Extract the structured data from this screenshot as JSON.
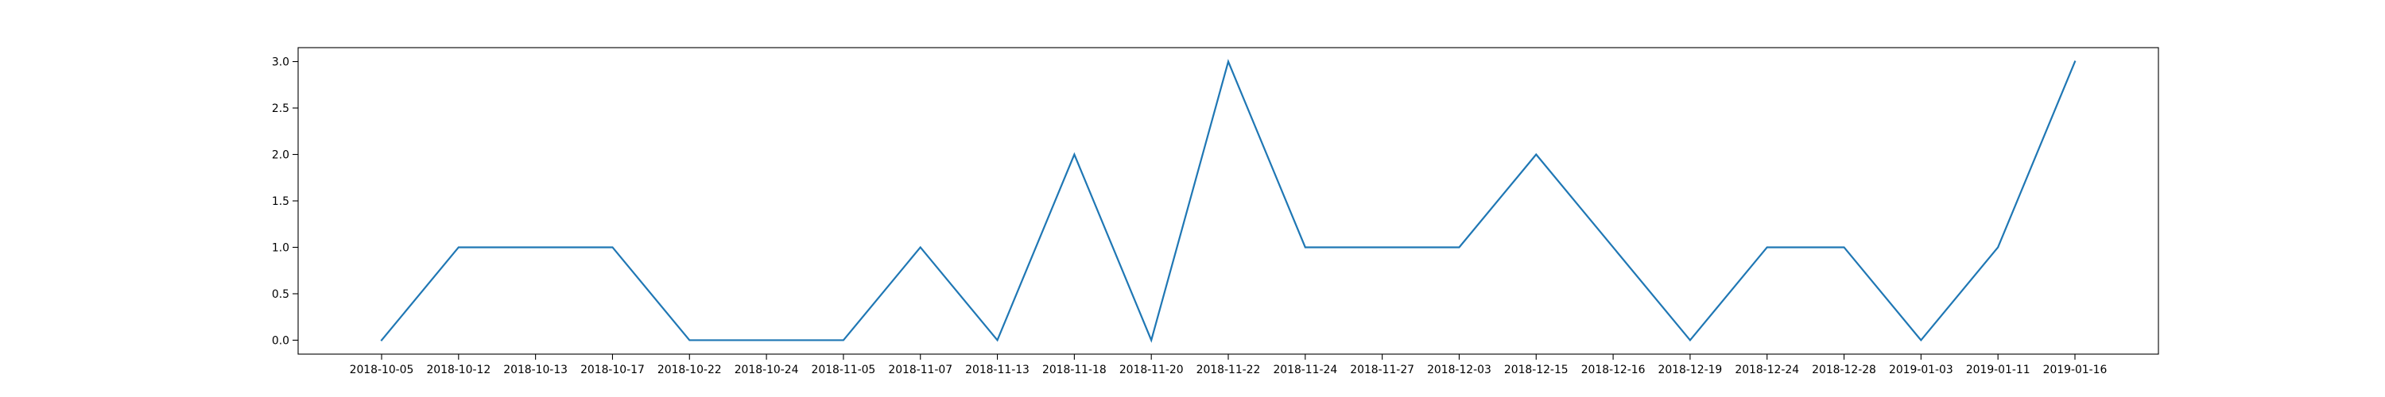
{
  "chart_data": {
    "type": "line",
    "categories": [
      "2018-10-05",
      "2018-10-12",
      "2018-10-13",
      "2018-10-17",
      "2018-10-22",
      "2018-10-24",
      "2018-11-05",
      "2018-11-07",
      "2018-11-13",
      "2018-11-18",
      "2018-11-20",
      "2018-11-22",
      "2018-11-24",
      "2018-11-27",
      "2018-12-03",
      "2018-12-15",
      "2018-12-16",
      "2018-12-19",
      "2018-12-24",
      "2018-12-28",
      "2019-01-03",
      "2019-01-11",
      "2019-01-16"
    ],
    "series": [
      {
        "values": [
          0,
          1,
          1,
          1,
          0,
          0,
          0,
          1,
          0,
          2,
          0,
          3,
          1,
          1,
          1,
          2,
          1,
          0,
          1,
          1,
          0,
          1,
          3
        ],
        "color": "#1f77b4"
      }
    ],
    "yticks": [
      "0.0",
      "0.5",
      "1.0",
      "1.5",
      "2.0",
      "2.5",
      "3.0"
    ],
    "ylim": [
      -0.15,
      3.15
    ],
    "title": "",
    "xlabel": "",
    "ylabel": "",
    "grid": false,
    "legend": false
  }
}
